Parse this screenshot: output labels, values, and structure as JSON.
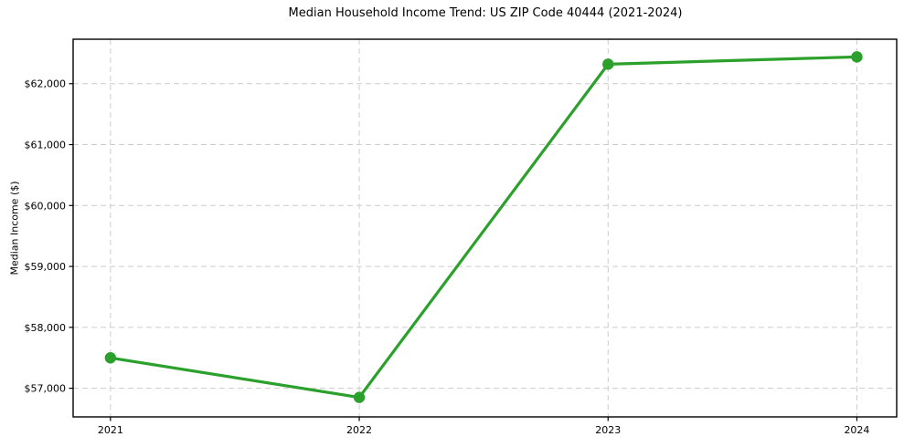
{
  "chart_data": {
    "type": "line",
    "title": "Median Household Income Trend: US ZIP Code 40444 (2021-2024)",
    "xlabel": "",
    "ylabel": "Median Income ($)",
    "x": [
      2021,
      2022,
      2023,
      2024
    ],
    "x_tick_labels": [
      "2021",
      "2022",
      "2023",
      "2024"
    ],
    "series": [
      {
        "name": "Median Household Income",
        "values": [
          57500,
          56850,
          62320,
          62440
        ],
        "color": "#2ca02c",
        "marker": "circle"
      }
    ],
    "y_ticks": [
      57000,
      58000,
      59000,
      60000,
      61000,
      62000
    ],
    "y_tick_labels": [
      "$57,000",
      "$58,000",
      "$59,000",
      "$60,000",
      "$61,000",
      "$62,000"
    ],
    "xlim": [
      2020.85,
      2024.16
    ],
    "ylim": [
      56530,
      62730
    ],
    "grid": {
      "visible": true,
      "style": "dashed",
      "color": "#cccccc",
      "axes": "both"
    },
    "legend": {
      "visible": false
    },
    "colors": {
      "background": "#ffffff",
      "frame": "#000000",
      "tick_text": "#000000"
    }
  }
}
